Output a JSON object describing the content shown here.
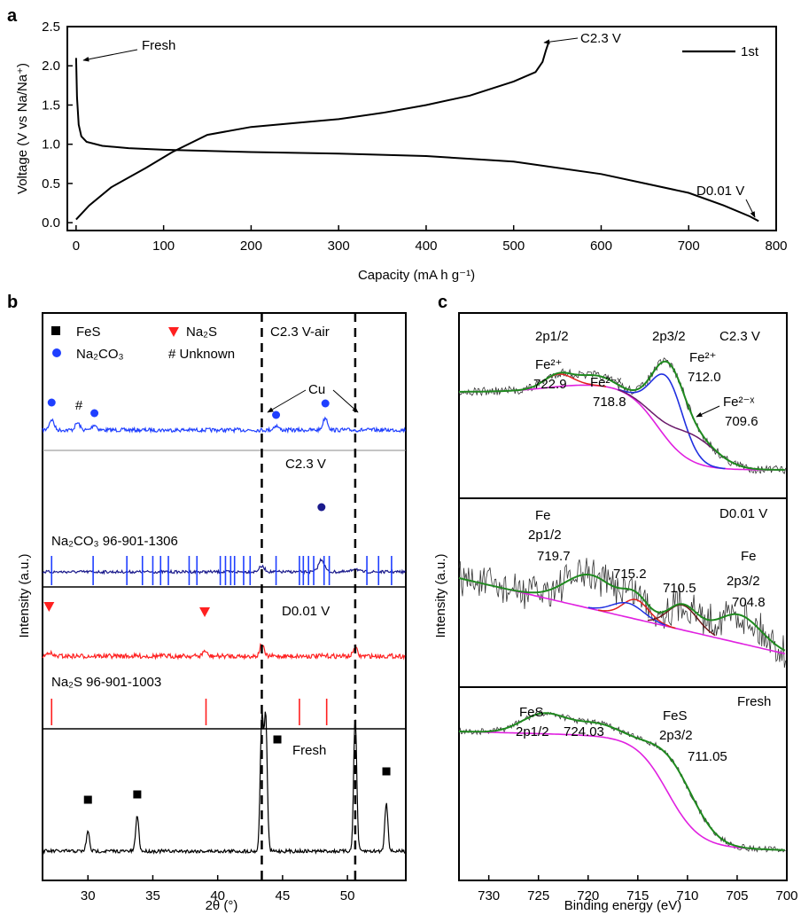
{
  "panel_a": {
    "letter": "a",
    "y_axis_label": "Voltage (V vs Na/Na⁺)",
    "x_axis_label": "Capacity (mA h g⁻¹)",
    "legend": "1st",
    "annotations": {
      "fresh": "Fresh",
      "charge": "C2.3 V",
      "discharge": "D0.01 V"
    }
  },
  "panel_b": {
    "letter": "b",
    "y_axis_label": "Intensity (a.u.)",
    "x_axis_label": "2θ (°)",
    "legend": {
      "fes": "FeS",
      "na2s": "Na₂S",
      "na2co3": "Na₂CO₃",
      "unknown": "# Unknown"
    },
    "labels": {
      "c23_air": "C2.3 V-air",
      "cu": "Cu",
      "c23": "C2.3 V",
      "ref_na2co3": "Na₂CO₃  96-901-1306",
      "d001": "D0.01 V",
      "ref_na2s": "Na₂S  96-901-1003",
      "fresh": "Fresh"
    }
  },
  "panel_c": {
    "letter": "c",
    "y_axis_label": "Intensity (a.u.)",
    "x_axis_label": "Binding energy (eV)",
    "top": {
      "state": "C2.3 V",
      "labels": {
        "p12": "2p1/2",
        "p32": "2p3/2",
        "fe2a": "Fe²⁺",
        "v7229": "722.9",
        "fe2xa": "Fe²⁻ˣ",
        "v7188": "718.8",
        "fe2b": "Fe²⁺",
        "v7120": "712.0",
        "fe2xb": "Fe²⁻ˣ",
        "v7096": "709.6"
      }
    },
    "mid": {
      "state": "D0.01 V",
      "labels": {
        "fe1": "Fe",
        "p12": "2p1/2",
        "v7197": "719.7",
        "v7152": "715.2",
        "v7105": "710.5",
        "fe2": "Fe",
        "p32": "2p3/2",
        "v7048": "704.8"
      }
    },
    "bot": {
      "state": "Fresh",
      "labels": {
        "fes1": "FeS",
        "p12": "2p1/2",
        "v72403": "724.03",
        "fes2": "FeS",
        "p32": "2p3/2",
        "v71105": "711.05"
      }
    }
  },
  "chart_data": [
    {
      "type": "line",
      "panel": "a",
      "xlabel": "Capacity (mA h g⁻¹)",
      "ylabel": "Voltage (V vs Na/Na⁺)",
      "xlim": [
        -10,
        800
      ],
      "ylim": [
        -0.1,
        2.5
      ],
      "xticks": [
        0,
        100,
        200,
        300,
        400,
        500,
        600,
        700,
        800
      ],
      "yticks": [
        0.0,
        0.5,
        1.0,
        1.5,
        2.0,
        2.5
      ],
      "series": [
        {
          "name": "1st",
          "color": "#000000",
          "discharge": [
            [
              0,
              2.1
            ],
            [
              1,
              1.6
            ],
            [
              3,
              1.25
            ],
            [
              6,
              1.1
            ],
            [
              12,
              1.03
            ],
            [
              30,
              0.98
            ],
            [
              60,
              0.95
            ],
            [
              100,
              0.93
            ],
            [
              200,
              0.9
            ],
            [
              300,
              0.88
            ],
            [
              400,
              0.85
            ],
            [
              500,
              0.78
            ],
            [
              600,
              0.62
            ],
            [
              650,
              0.5
            ],
            [
              700,
              0.38
            ],
            [
              740,
              0.22
            ],
            [
              770,
              0.08
            ],
            [
              780,
              0.02
            ]
          ],
          "charge": [
            [
              0,
              0.04
            ],
            [
              5,
              0.1
            ],
            [
              15,
              0.22
            ],
            [
              40,
              0.45
            ],
            [
              80,
              0.7
            ],
            [
              110,
              0.9
            ],
            [
              150,
              1.12
            ],
            [
              200,
              1.22
            ],
            [
              250,
              1.27
            ],
            [
              300,
              1.32
            ],
            [
              350,
              1.4
            ],
            [
              400,
              1.5
            ],
            [
              450,
              1.62
            ],
            [
              500,
              1.8
            ],
            [
              525,
              1.92
            ],
            [
              533,
              2.05
            ],
            [
              537,
              2.2
            ],
            [
              540,
              2.3
            ]
          ]
        }
      ]
    },
    {
      "type": "line",
      "panel": "b",
      "xlabel": "2θ (°)",
      "ylabel": "Intensity (a.u.)",
      "xlim": [
        26.5,
        54.5
      ],
      "xticks": [
        30,
        35,
        40,
        45,
        50
      ],
      "cu_lines": [
        43.4,
        50.6
      ],
      "series": [
        {
          "name": "C2.3 V-air",
          "color": "#1f3fff",
          "peaks": [
            [
              27.2,
              12
            ],
            [
              29.2,
              8
            ],
            [
              30.5,
              6
            ],
            [
              44.5,
              5
            ],
            [
              48.3,
              14
            ]
          ]
        },
        {
          "name": "C2.3 V",
          "color": "#1a1a8c",
          "peaks": [
            [
              43.4,
              6
            ],
            [
              48.0,
              14
            ],
            [
              50.6,
              4
            ]
          ]
        },
        {
          "name": "D0.01 V",
          "color": "#ff2020",
          "peaks": [
            [
              27.0,
              5
            ],
            [
              39.0,
              6
            ],
            [
              43.4,
              14
            ],
            [
              50.6,
              10
            ]
          ]
        },
        {
          "name": "Fresh",
          "color": "#000000",
          "peaks": [
            [
              30.0,
              22
            ],
            [
              33.8,
              40
            ],
            [
              43.4,
              150
            ],
            [
              43.7,
              150
            ],
            [
              50.6,
              150
            ],
            [
              53.0,
              55
            ]
          ]
        }
      ],
      "markers": {
        "fes": [
          30.0,
          33.8,
          44.6,
          53.0
        ],
        "na2co3": [
          27.2,
          30.5,
          44.5,
          48.3,
          48.0
        ],
        "na2s": [
          27.0,
          39.0
        ],
        "unknown": [
          29.2
        ]
      },
      "ref_na2co3": [
        27.2,
        30.4,
        33.0,
        34.2,
        35.0,
        35.6,
        36.2,
        37.8,
        38.4,
        40.2,
        40.6,
        41.0,
        41.3,
        42.0,
        42.5,
        44.5,
        46.3,
        46.6,
        47.0,
        47.4,
        48.2,
        48.6,
        51.5,
        52.4,
        53.4
      ],
      "ref_na2s": [
        27.2,
        39.1,
        46.3,
        48.4
      ]
    },
    {
      "type": "line",
      "panel": "c",
      "xlabel": "Binding energy (eV)",
      "ylabel": "Intensity (a.u.)",
      "xlim": [
        733,
        700
      ],
      "xticks": [
        730,
        725,
        720,
        715,
        710,
        705,
        700
      ],
      "series": [
        {
          "name": "C2.3 V",
          "peaks": [
            [
              722.9,
              "Fe2+"
            ],
            [
              718.8,
              "Fe2-x"
            ],
            [
              712.0,
              "Fe2+"
            ],
            [
              709.6,
              "Fe2-x"
            ]
          ]
        },
        {
          "name": "D0.01 V",
          "peaks": [
            [
              719.7,
              "Fe 2p1/2"
            ],
            [
              715.2,
              ""
            ],
            [
              710.5,
              ""
            ],
            [
              704.8,
              "Fe 2p3/2"
            ]
          ]
        },
        {
          "name": "Fresh",
          "peaks": [
            [
              724.03,
              "FeS 2p1/2"
            ],
            [
              711.05,
              "FeS 2p3/2"
            ]
          ]
        }
      ]
    }
  ]
}
